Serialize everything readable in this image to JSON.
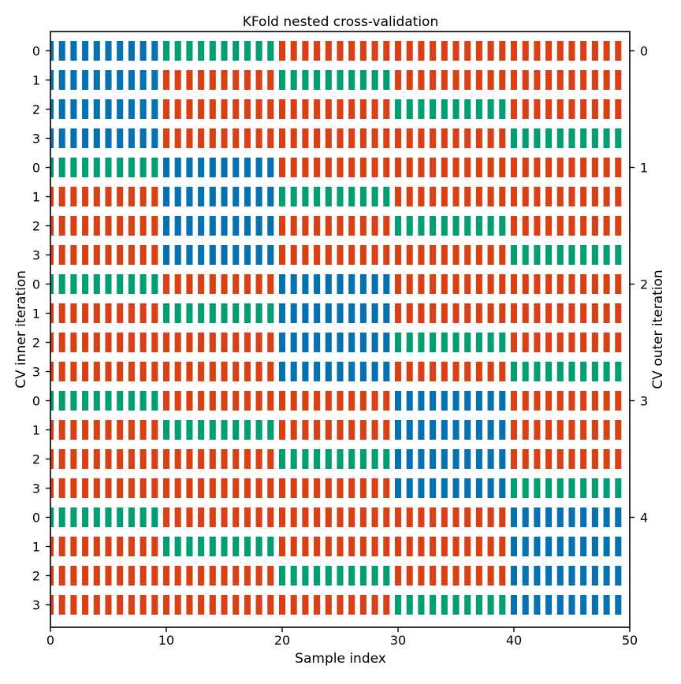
{
  "chart_data": {
    "type": "heatmap",
    "title": "KFold nested cross-validation",
    "xlabel": "Sample index",
    "ylabel_left": "CV inner iteration",
    "ylabel_right": "CV outer iteration",
    "xlim": [
      0,
      50
    ],
    "x_ticks": [
      0,
      10,
      20,
      30,
      40,
      50
    ],
    "n_samples": 50,
    "inner_splits": 4,
    "outer_splits": 5,
    "inner_tick_labels": [
      "0",
      "1",
      "2",
      "3",
      "0",
      "1",
      "2",
      "3",
      "0",
      "1",
      "2",
      "3",
      "0",
      "1",
      "2",
      "3",
      "0",
      "1",
      "2",
      "3"
    ],
    "outer_tick_labels": [
      "0",
      "1",
      "2",
      "3",
      "4"
    ],
    "colors": {
      "train": "#d84116",
      "validation": "#029e73",
      "test": "#0571b0"
    },
    "rows": [
      {
        "outer": 0,
        "inner": 0,
        "test": [
          0,
          10
        ],
        "validation": [
          10,
          20
        ]
      },
      {
        "outer": 0,
        "inner": 1,
        "test": [
          0,
          10
        ],
        "validation": [
          20,
          30
        ]
      },
      {
        "outer": 0,
        "inner": 2,
        "test": [
          0,
          10
        ],
        "validation": [
          30,
          40
        ]
      },
      {
        "outer": 0,
        "inner": 3,
        "test": [
          0,
          10
        ],
        "validation": [
          40,
          50
        ]
      },
      {
        "outer": 1,
        "inner": 0,
        "test": [
          10,
          20
        ],
        "validation": [
          0,
          10
        ]
      },
      {
        "outer": 1,
        "inner": 1,
        "test": [
          10,
          20
        ],
        "validation": [
          20,
          30
        ]
      },
      {
        "outer": 1,
        "inner": 2,
        "test": [
          10,
          20
        ],
        "validation": [
          30,
          40
        ]
      },
      {
        "outer": 1,
        "inner": 3,
        "test": [
          10,
          20
        ],
        "validation": [
          40,
          50
        ]
      },
      {
        "outer": 2,
        "inner": 0,
        "test": [
          20,
          30
        ],
        "validation": [
          0,
          10
        ]
      },
      {
        "outer": 2,
        "inner": 1,
        "test": [
          20,
          30
        ],
        "validation": [
          10,
          20
        ]
      },
      {
        "outer": 2,
        "inner": 2,
        "test": [
          20,
          30
        ],
        "validation": [
          30,
          40
        ]
      },
      {
        "outer": 2,
        "inner": 3,
        "test": [
          20,
          30
        ],
        "validation": [
          40,
          50
        ]
      },
      {
        "outer": 3,
        "inner": 0,
        "test": [
          30,
          40
        ],
        "validation": [
          0,
          10
        ]
      },
      {
        "outer": 3,
        "inner": 1,
        "test": [
          30,
          40
        ],
        "validation": [
          10,
          20
        ]
      },
      {
        "outer": 3,
        "inner": 2,
        "test": [
          30,
          40
        ],
        "validation": [
          20,
          30
        ]
      },
      {
        "outer": 3,
        "inner": 3,
        "test": [
          30,
          40
        ],
        "validation": [
          40,
          50
        ]
      },
      {
        "outer": 4,
        "inner": 0,
        "test": [
          40,
          50
        ],
        "validation": [
          0,
          10
        ]
      },
      {
        "outer": 4,
        "inner": 1,
        "test": [
          40,
          50
        ],
        "validation": [
          10,
          20
        ]
      },
      {
        "outer": 4,
        "inner": 2,
        "test": [
          40,
          50
        ],
        "validation": [
          20,
          30
        ]
      },
      {
        "outer": 4,
        "inner": 3,
        "test": [
          40,
          50
        ],
        "validation": [
          30,
          40
        ]
      }
    ]
  }
}
